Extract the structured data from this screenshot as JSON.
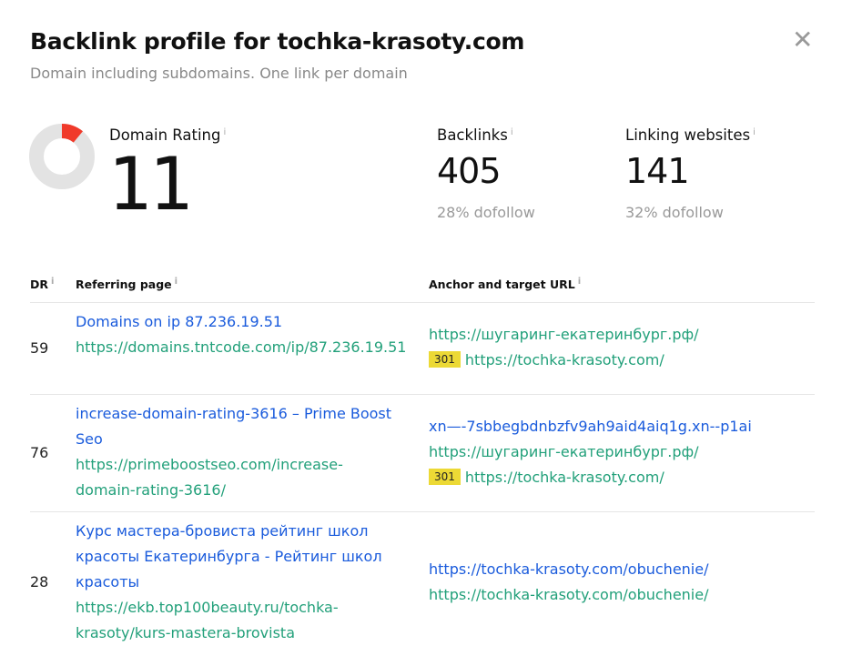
{
  "header": {
    "title": "Backlink profile for tochka-krasoty.com",
    "subtitle": "Domain including subdomains. One link per domain",
    "close_icon": "close-icon"
  },
  "stats": {
    "domain_rating": {
      "label": "Domain Rating",
      "value": "11",
      "gauge_percent": 11,
      "gauge_color": "#f03a2a"
    },
    "backlinks": {
      "label": "Backlinks",
      "value": "405",
      "sub": "28% dofollow"
    },
    "linking_websites": {
      "label": "Linking websites",
      "value": "141",
      "sub": "32% dofollow"
    }
  },
  "table": {
    "headers": {
      "dr": "DR",
      "referring": "Referring page",
      "anchor": "Anchor and target URL"
    },
    "info_glyph": "i",
    "rows": [
      {
        "dr": "59",
        "title": "Domains on ip 87.236.19.51",
        "url": "https://domains.tntcode.com/ip/87.236.19.51",
        "anchor": "",
        "links": [
          "https://шугаринг-екатеринбург.рф/"
        ],
        "badge": "301",
        "target": "https://tochka-krasoty.com/"
      },
      {
        "dr": "76",
        "title": "increase-domain-rating-3616 – Prime Boost Seo",
        "url": "https://primeboostseo.com/increase-domain-rating-3616/",
        "anchor": "xn—-7sbbegbdnbzfv9ah9aid4aiq1g.xn--p1ai",
        "links": [
          "https://шугаринг-екатеринбург.рф/"
        ],
        "badge": "301",
        "target": "https://tochka-krasoty.com/"
      },
      {
        "dr": "28",
        "title": "Курс мастера-бровиста рейтинг школ красоты Екатеринбурга - Рейтинг школ красоты",
        "url": "https://ekb.top100beauty.ru/tochka-krasoty/kurs-mastera-brovista",
        "anchor": "https://tochka-krasoty.com/obuchenie/",
        "links": [
          "https://tochka-krasoty.com/obuchenie/"
        ],
        "badge": "",
        "target": ""
      }
    ]
  }
}
